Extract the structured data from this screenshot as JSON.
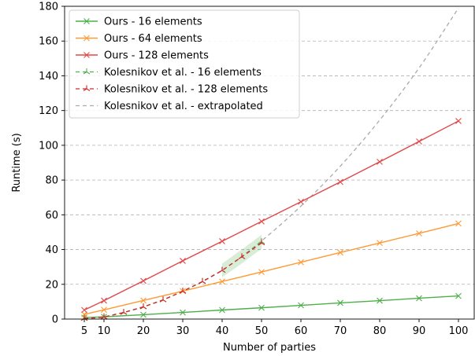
{
  "chart_data": {
    "type": "line",
    "xlabel": "Number of parties",
    "ylabel": "Runtime (s)",
    "xlim": [
      0,
      104
    ],
    "ylim": [
      0,
      180
    ],
    "xticks": [
      5,
      10,
      20,
      30,
      40,
      50,
      60,
      70,
      80,
      90,
      100
    ],
    "yticks": [
      0,
      20,
      40,
      60,
      80,
      100,
      120,
      140,
      160,
      180
    ],
    "grid": "horizontal dashed",
    "legend_position": "top-left",
    "series": [
      {
        "name": "Ours - 16 elements",
        "color": "#4daf4a",
        "style": "solid-x",
        "x": [
          5,
          10,
          20,
          30,
          40,
          50,
          60,
          70,
          80,
          90,
          100
        ],
        "y": [
          0.8,
          1.3,
          2.5,
          3.8,
          5.2,
          6.5,
          7.9,
          9.3,
          10.6,
          12.0,
          13.3
        ]
      },
      {
        "name": "Ours - 64 elements",
        "color": "#ff9933",
        "style": "solid-x",
        "x": [
          5,
          10,
          20,
          30,
          40,
          50,
          60,
          70,
          80,
          90,
          100
        ],
        "y": [
          2.7,
          5.3,
          10.7,
          16.1,
          21.6,
          27.1,
          32.7,
          38.3,
          43.8,
          49.3,
          55.0
        ]
      },
      {
        "name": "Ours - 128 elements",
        "color": "#e04848",
        "style": "solid-x",
        "x": [
          5,
          10,
          20,
          30,
          40,
          50,
          60,
          70,
          80,
          90,
          100
        ],
        "y": [
          5.2,
          10.6,
          22.0,
          33.5,
          44.8,
          56.2,
          67.5,
          78.9,
          90.5,
          102.2,
          114.0
        ]
      },
      {
        "name": "Kolesnikov et al. - 16 elements",
        "color": "#4daf4a",
        "style": "dashed-tri",
        "x": [
          5,
          10,
          15,
          20,
          25,
          30,
          35,
          40,
          45,
          50
        ],
        "y": [
          0.3,
          1.2,
          3.8,
          7.0,
          11.0,
          16.0,
          21.6,
          28.0,
          35.8,
          44.5
        ]
      },
      {
        "name": "Kolesnikov et al. - 128 elements",
        "color": "#d62728",
        "style": "dashed-tri",
        "x": [
          5,
          10,
          15,
          20,
          25,
          30,
          35,
          40,
          45,
          50
        ],
        "y": [
          0.3,
          1.2,
          3.8,
          7.0,
          11.0,
          16.0,
          21.6,
          28.0,
          35.8,
          43.8
        ]
      },
      {
        "name": "Kolesnikov et al. - extrapolated",
        "color": "#aaaaaa",
        "style": "dashed",
        "x": [
          5,
          10,
          20,
          30,
          40,
          50,
          60,
          70,
          80,
          90,
          100
        ],
        "y": [
          0.3,
          1.2,
          7.0,
          16.0,
          28.0,
          45.0,
          65.0,
          88.0,
          114.5,
          144.5,
          179.0
        ]
      }
    ]
  }
}
